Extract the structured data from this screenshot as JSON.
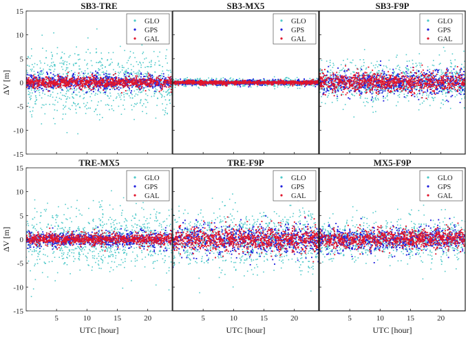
{
  "chart_data": {
    "type": "scatter",
    "xlabel": "UTC [hour]",
    "ylabel": "ΔV [m]",
    "ylim": [
      -15,
      15
    ],
    "xlim": [
      0,
      24
    ],
    "yticks": [
      -15,
      -10,
      -5,
      0,
      5,
      10,
      15
    ],
    "xticks": [
      5,
      10,
      15,
      20
    ],
    "grid": false,
    "legend_position": "top-right",
    "series_names": [
      "GLO",
      "GPS",
      "GAL"
    ],
    "colors": {
      "GLO": "#4ec9c9",
      "GPS": "#1f1fdc",
      "GAL": "#e0152c"
    },
    "panels": [
      {
        "title": "SB3-TRE",
        "approx_std": {
          "GLO": 3.0,
          "GPS": 0.8,
          "GAL": 0.6
        },
        "approx_max_abs": {
          "GLO": 13,
          "GPS": 3,
          "GAL": 2.5
        }
      },
      {
        "title": "SB3-MX5",
        "approx_std": {
          "GLO": 0.35,
          "GPS": 0.25,
          "GAL": 0.2
        },
        "approx_max_abs": {
          "GLO": 1.5,
          "GPS": 1,
          "GAL": 1
        }
      },
      {
        "title": "SB3-F9P",
        "approx_std": {
          "GLO": 2.0,
          "GPS": 1.2,
          "GAL": 1.0
        },
        "approx_max_abs": {
          "GLO": 9,
          "GPS": 6,
          "GAL": 6
        }
      },
      {
        "title": "TRE-MX5",
        "approx_std": {
          "GLO": 3.0,
          "GPS": 0.8,
          "GAL": 0.6
        },
        "approx_max_abs": {
          "GLO": 13,
          "GPS": 3,
          "GAL": 2.5
        }
      },
      {
        "title": "TRE-F9P",
        "approx_std": {
          "GLO": 3.0,
          "GPS": 1.5,
          "GAL": 1.2
        },
        "approx_max_abs": {
          "GLO": 13,
          "GPS": 6,
          "GAL": 6
        }
      },
      {
        "title": "MX5-F9P",
        "approx_std": {
          "GLO": 2.0,
          "GPS": 1.2,
          "GAL": 1.0
        },
        "approx_max_abs": {
          "GLO": 9,
          "GPS": 6,
          "GAL": 6
        }
      }
    ]
  }
}
